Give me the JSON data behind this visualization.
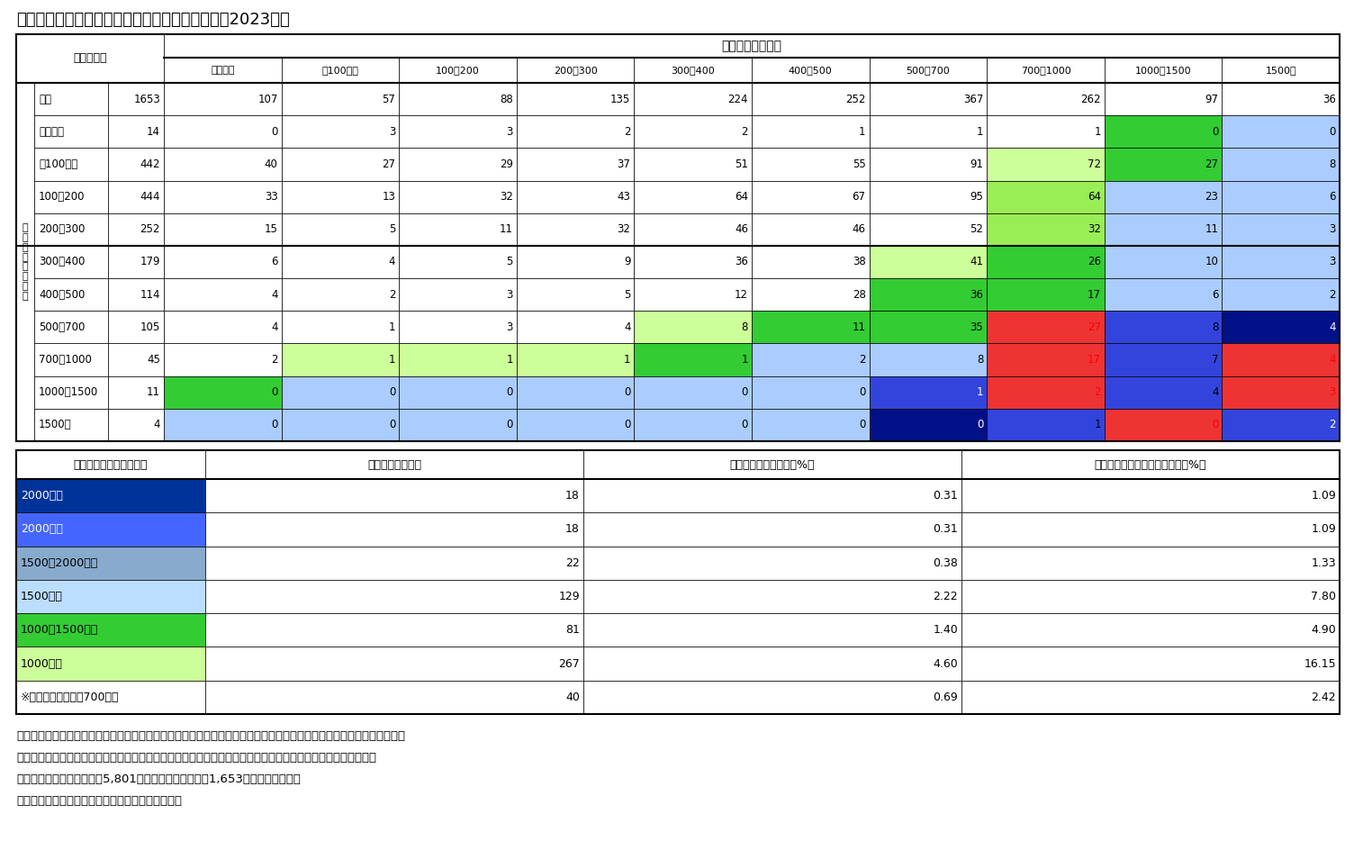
{
  "title": "図表８　夫妻の年収階級別に見た共働き世帯数（2023年）",
  "husband_header": "夫の年収（万円）",
  "wife_header": "妻\nの\n年\n収\n（\n万\n円\n）",
  "unit_label": "（万世帯）",
  "col_headers": [
    "全体",
    "収入なし",
    "〜100未満",
    "100〜200",
    "200〜300",
    "300〜400",
    "400〜500",
    "500〜700",
    "700〜1000",
    "1000〜1500",
    "1500〜"
  ],
  "row_labels": [
    "全体",
    "収入なし",
    "〜100未満",
    "100〜200",
    "200〜300",
    "300〜400",
    "400〜500",
    "500〜700",
    "700〜1000",
    "1000〜1500",
    "1500〜"
  ],
  "data": [
    [
      1653,
      107,
      57,
      88,
      135,
      224,
      252,
      367,
      262,
      97,
      36
    ],
    [
      14,
      0,
      3,
      3,
      2,
      2,
      1,
      1,
      1,
      0,
      0
    ],
    [
      442,
      40,
      27,
      29,
      37,
      51,
      55,
      91,
      72,
      27,
      8
    ],
    [
      444,
      33,
      13,
      32,
      43,
      64,
      67,
      95,
      64,
      23,
      6
    ],
    [
      252,
      15,
      5,
      11,
      32,
      46,
      46,
      52,
      32,
      11,
      3
    ],
    [
      179,
      6,
      4,
      5,
      9,
      36,
      38,
      41,
      26,
      10,
      3
    ],
    [
      114,
      4,
      2,
      3,
      5,
      12,
      28,
      36,
      17,
      6,
      2
    ],
    [
      105,
      4,
      1,
      3,
      4,
      8,
      11,
      35,
      27,
      8,
      4
    ],
    [
      45,
      2,
      1,
      1,
      1,
      1,
      2,
      8,
      17,
      7,
      4
    ],
    [
      11,
      0,
      0,
      0,
      0,
      0,
      0,
      1,
      2,
      4,
      3
    ],
    [
      4,
      0,
      0,
      0,
      0,
      0,
      0,
      0,
      1,
      0,
      2
    ]
  ],
  "cell_colors": [
    [
      "white",
      "white",
      "white",
      "white",
      "white",
      "white",
      "white",
      "white",
      "white",
      "white",
      "white"
    ],
    [
      "white",
      "white",
      "white",
      "white",
      "white",
      "white",
      "white",
      "white",
      "white",
      "#33cc33",
      "#aaccff"
    ],
    [
      "white",
      "white",
      "white",
      "white",
      "white",
      "white",
      "white",
      "white",
      "#ccff99",
      "#33cc33",
      "#aaccff"
    ],
    [
      "white",
      "white",
      "white",
      "white",
      "white",
      "white",
      "white",
      "white",
      "#99ee55",
      "#aaccff",
      "#aaccff"
    ],
    [
      "white",
      "white",
      "white",
      "white",
      "white",
      "white",
      "white",
      "white",
      "#99ee55",
      "#aaccff",
      "#aaccff"
    ],
    [
      "white",
      "white",
      "white",
      "white",
      "white",
      "white",
      "white",
      "#ccff99",
      "#33cc33",
      "#aaccff",
      "#aaccff"
    ],
    [
      "white",
      "white",
      "white",
      "white",
      "white",
      "white",
      "white",
      "#33cc33",
      "#33cc33",
      "#aaccff",
      "#aaccff"
    ],
    [
      "white",
      "white",
      "white",
      "white",
      "white",
      "#ccff99",
      "#33cc33",
      "#33cc33",
      "#ee3333",
      "#3344dd",
      "#001188"
    ],
    [
      "white",
      "white",
      "#ccff99",
      "#ccff99",
      "#ccff99",
      "#33cc33",
      "#aaccff",
      "#aaccff",
      "#ee3333",
      "#3344dd",
      "#ee3333"
    ],
    [
      "white",
      "#33cc33",
      "#aaccff",
      "#aaccff",
      "#aaccff",
      "#aaccff",
      "#aaccff",
      "#3344dd",
      "#ee3333",
      "#3344dd",
      "#ee3333"
    ],
    [
      "white",
      "#aaccff",
      "#aaccff",
      "#aaccff",
      "#aaccff",
      "#aaccff",
      "#aaccff",
      "#001188",
      "#3344dd",
      "#ee3333",
      "#3344dd"
    ]
  ],
  "text_colors": [
    [
      "black",
      "black",
      "black",
      "black",
      "black",
      "black",
      "black",
      "black",
      "black",
      "black",
      "black"
    ],
    [
      "black",
      "black",
      "black",
      "black",
      "black",
      "black",
      "black",
      "black",
      "black",
      "black",
      "black"
    ],
    [
      "black",
      "black",
      "black",
      "black",
      "black",
      "black",
      "black",
      "black",
      "black",
      "black",
      "black"
    ],
    [
      "black",
      "black",
      "black",
      "black",
      "black",
      "black",
      "black",
      "black",
      "black",
      "black",
      "black"
    ],
    [
      "black",
      "black",
      "black",
      "black",
      "black",
      "black",
      "black",
      "black",
      "black",
      "black",
      "black"
    ],
    [
      "black",
      "black",
      "black",
      "black",
      "black",
      "black",
      "black",
      "black",
      "black",
      "black",
      "black"
    ],
    [
      "black",
      "black",
      "black",
      "black",
      "black",
      "black",
      "black",
      "black",
      "black",
      "black",
      "black"
    ],
    [
      "black",
      "black",
      "black",
      "black",
      "black",
      "black",
      "black",
      "black",
      "red",
      "black",
      "white"
    ],
    [
      "black",
      "black",
      "black",
      "black",
      "black",
      "black",
      "black",
      "black",
      "red",
      "black",
      "red"
    ],
    [
      "black",
      "black",
      "black",
      "black",
      "black",
      "black",
      "black",
      "white",
      "red",
      "black",
      "red"
    ],
    [
      "black",
      "black",
      "black",
      "black",
      "black",
      "black",
      "black",
      "white",
      "black",
      "red",
      "white"
    ]
  ],
  "lower_headers": [
    "夫妻の合計年収（万円）",
    "世帯数（万世帯）",
    "総世帯に占める割合（%）",
    "就業者夫婦世帯に占める割合（%）"
  ],
  "lower_rows": [
    [
      "2000以上",
      "18",
      "0.31",
      "1.09"
    ],
    [
      "2000前後",
      "18",
      "0.31",
      "1.09"
    ],
    [
      "1500〜2000未満",
      "22",
      "0.38",
      "1.33"
    ],
    [
      "1500前後",
      "129",
      "2.22",
      "7.80"
    ],
    [
      "1000〜1500未満",
      "81",
      "1.40",
      "4.90"
    ],
    [
      "1000前後",
      "267",
      "4.60",
      "16.15"
    ],
    [
      "※参考：夫婦ともに700以上",
      "40",
      "0.69",
      "2.42"
    ]
  ],
  "lower_row_bg": [
    "#003399",
    "#4466ff",
    "#88aacc",
    "#bbddff",
    "#33cc33",
    "#ccff99",
    "white"
  ],
  "lower_row_fg": [
    "white",
    "white",
    "black",
    "black",
    "black",
    "black",
    "black"
  ],
  "notes": [
    "（注１）　図表８は図表７を世帯数で見たもの、赤字はパワーカップル世帯、公表値の集計単位（１万世帯）に対して世",
    "　　　　帯数が少ない収入階級も存在するため、各階級の世帯数の合計値と全体の数値は必ずしも一致しない。",
    "（注２）　下の図は総世帯5,801世帯、就業者夫婦世帯1,653世帯に占める割合",
    "（資料）　総務省「令和５年労働力調査」より作成"
  ]
}
